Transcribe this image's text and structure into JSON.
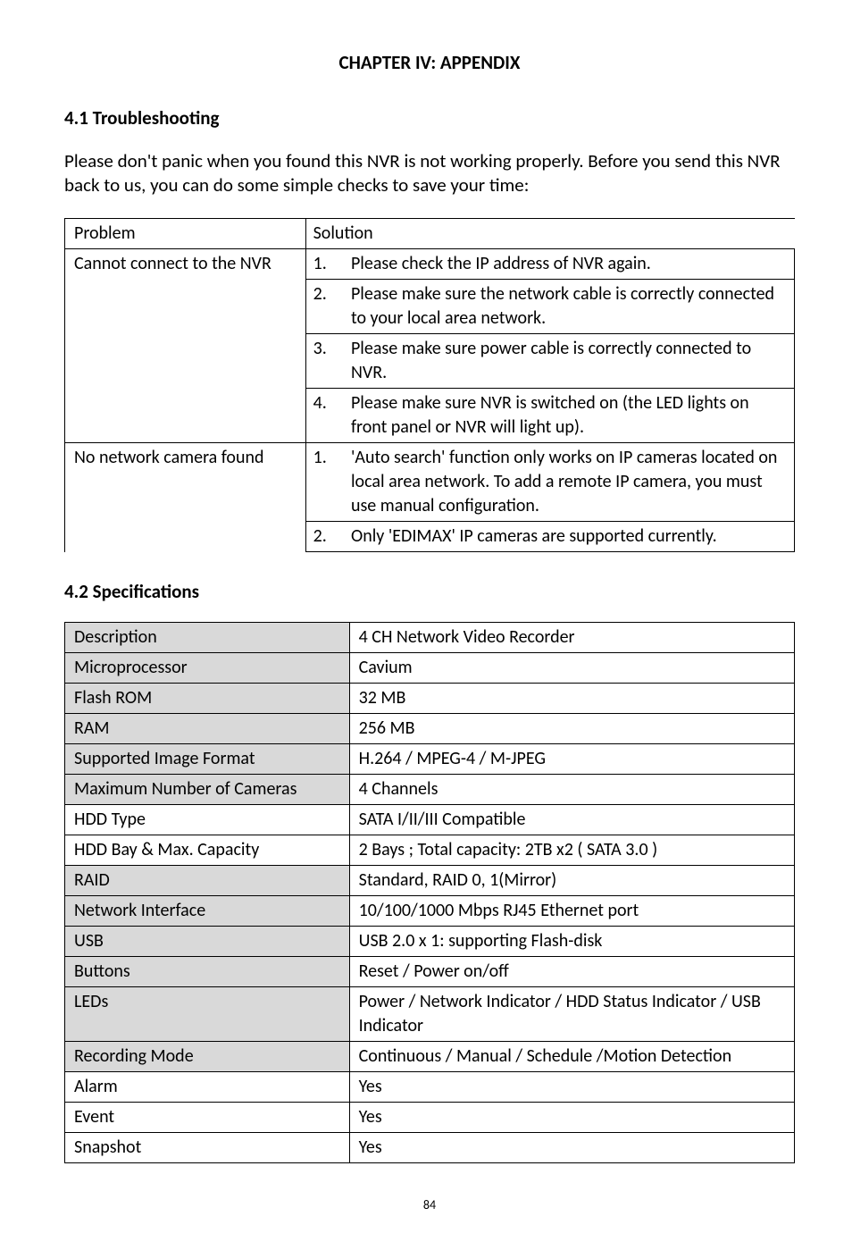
{
  "chapter_title": "CHAPTER IV: APPENDIX",
  "section41": {
    "heading": "4.1 Troubleshooting",
    "intro": "Please don't panic when you found this NVR is not working properly. Before you send this NVR back to us, you can do some simple checks to save your time:"
  },
  "table1": {
    "headers": {
      "problem": "Problem",
      "solution": "Solution"
    },
    "rows": [
      {
        "problem": "Cannot connect to the NVR",
        "items": [
          {
            "n": "1.",
            "text": "Please check the IP address of NVR again."
          },
          {
            "n": "2.",
            "text": "Please make sure the network cable is correctly connected to your local area network."
          },
          {
            "n": "3.",
            "text": "Please make sure power cable is correctly connected to NVR."
          },
          {
            "n": "4.",
            "text": "Please make sure NVR is switched on (the LED lights on front panel or NVR will light up)."
          }
        ]
      },
      {
        "problem": "No network camera found",
        "items": [
          {
            "n": "1.",
            "text": "'Auto search' function only works on IP cameras located on local area network. To add a remote IP camera, you must use manual configuration."
          },
          {
            "n": "2.",
            "text": "Only 'EDIMAX' IP cameras are supported currently."
          }
        ]
      }
    ]
  },
  "section42": {
    "heading": "4.2 Specifications"
  },
  "table2": {
    "rows": [
      {
        "k": "Description",
        "v": "4 CH Network Video Recorder"
      },
      {
        "k": "Microprocessor",
        "v": "Cavium"
      },
      {
        "k": "Flash ROM",
        "v": "32 MB"
      },
      {
        "k": "RAM",
        "v": "256 MB"
      },
      {
        "k": "Supported Image Format",
        "v": "H.264 / MPEG-4 / M-JPEG"
      },
      {
        "k": "Maximum Number of Cameras",
        "v": "4 Channels"
      },
      {
        "k": "HDD Type",
        "v": "SATA I/II/III Compatible"
      },
      {
        "k": "HDD Bay & Max. Capacity",
        "v": "2 Bays ; Total capacity: 2TB x2 ( SATA 3.0 )"
      },
      {
        "k": "RAID",
        "v": "Standard, RAID 0, 1(Mirror)"
      },
      {
        "k": "Network Interface",
        "v": "10/100/1000 Mbps RJ45 Ethernet port"
      },
      {
        "k": "USB",
        "v": "USB 2.0 x 1: supporting Flash-disk"
      },
      {
        "k": "Buttons",
        "v": "Reset / Power on/off"
      },
      {
        "k": "LEDs",
        "v": "Power / Network Indicator / HDD Status Indicator / USB Indicator"
      },
      {
        "k": "Recording Mode",
        "v": "Continuous / Manual / Schedule /Motion Detection"
      },
      {
        "k": "Alarm",
        "v": "Yes"
      },
      {
        "k": "Event",
        "v": "Yes"
      },
      {
        "k": "Snapshot",
        "v": "Yes"
      }
    ],
    "whiteRows": [
      6,
      7,
      14,
      15,
      16
    ]
  },
  "page_number": "84"
}
